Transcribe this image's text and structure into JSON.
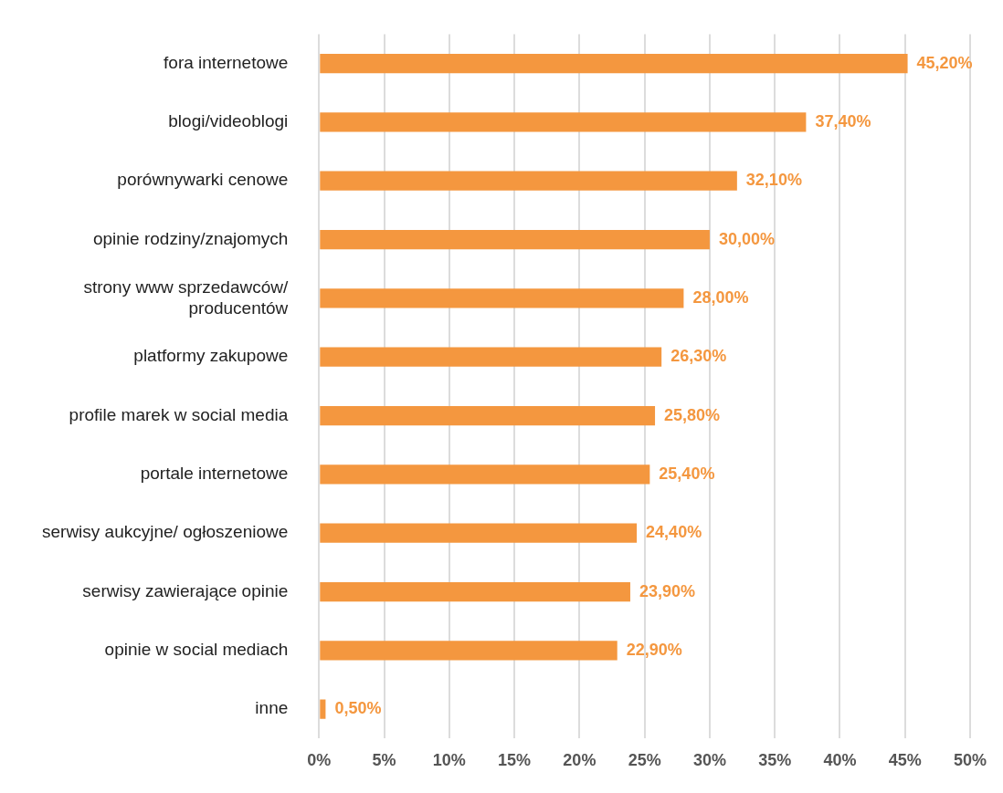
{
  "chart_data": {
    "type": "bar",
    "orientation": "horizontal",
    "categories": [
      "fora internetowe",
      "blogi/videoblogi",
      "porównywarki cenowe",
      "opinie rodziny/znajomych",
      "strony www sprzedawców/ producentów",
      "platformy zakupowe",
      "profile marek w social media",
      "portale internetowe",
      "serwisy aukcyjne/ ogłoszeniowe",
      "serwisy zawierające opinie",
      "opinie w social mediach",
      "inne"
    ],
    "values": [
      45.2,
      37.4,
      32.1,
      30.0,
      28.0,
      26.3,
      25.8,
      25.4,
      24.4,
      23.9,
      22.9,
      0.5
    ],
    "value_labels": [
      "45,20%",
      "37,40%",
      "32,10%",
      "30,00%",
      "28,00%",
      "26,30%",
      "25,80%",
      "25,40%",
      "24,40%",
      "23,90%",
      "22,90%",
      "0,50%"
    ],
    "color": "#f4973f",
    "xlim": [
      0,
      50
    ],
    "xticks": [
      {
        "value": 0,
        "label": "0%"
      },
      {
        "value": 5,
        "label": "5%"
      },
      {
        "value": 10,
        "label": "10%"
      },
      {
        "value": 15,
        "label": "15%"
      },
      {
        "value": 20,
        "label": "20%"
      },
      {
        "value": 25,
        "label": "25%"
      },
      {
        "value": 30,
        "label": "30%"
      },
      {
        "value": 35,
        "label": "35%"
      },
      {
        "value": 40,
        "label": "40%"
      },
      {
        "value": 45,
        "label": "45%"
      },
      {
        "value": 50,
        "label": "50%"
      }
    ],
    "grid": "x",
    "legend": false
  }
}
